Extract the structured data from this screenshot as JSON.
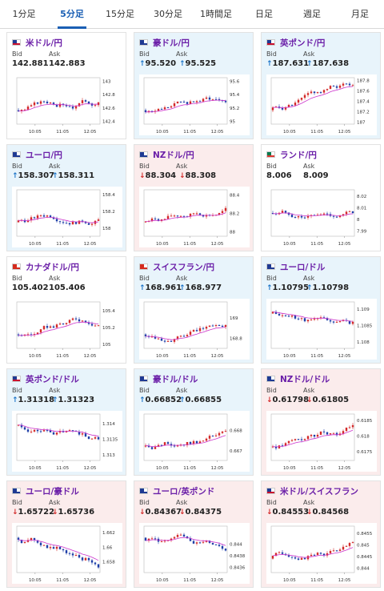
{
  "tabs": [
    {
      "label": "1分足",
      "active": false
    },
    {
      "label": "5分足",
      "active": true
    },
    {
      "label": "15分足",
      "active": false
    },
    {
      "label": "30分足",
      "active": false
    },
    {
      "label": "1時間足",
      "active": false
    },
    {
      "label": "日足",
      "active": false
    },
    {
      "label": "週足",
      "active": false
    },
    {
      "label": "月足",
      "active": false
    }
  ],
  "bid_label": "Bid",
  "ask_label": "Ask",
  "colors": {
    "up_bg": "#e8f4fb",
    "down_bg": "#fbecec",
    "bull": "#d32a2a",
    "bear": "#1f3fa8",
    "ma": "#cc33cc",
    "pair_name": "#6b1fa8"
  },
  "cards": [
    {
      "name": "米ドル/円",
      "flag": "us",
      "dir": "none",
      "bid": "142.881",
      "ask": "142.883",
      "chart_data": {
        "type": "candlestick",
        "x_ticks": [
          "10:05",
          "11:05",
          "12:05"
        ],
        "y_ticks": [
          "143",
          "142.8",
          "142.6",
          "142.4"
        ],
        "ylim": [
          142.35,
          143.05
        ],
        "trend": "up"
      }
    },
    {
      "name": "豪ドル/円",
      "flag": "au",
      "dir": "up",
      "bid": "95.520",
      "ask": "95.525",
      "chart_data": {
        "type": "candlestick",
        "x_ticks": [
          "10:05",
          "11:05",
          "12:05"
        ],
        "y_ticks": [
          "95.6",
          "95.4",
          "95.2",
          "95"
        ],
        "ylim": [
          94.95,
          95.65
        ],
        "trend": "up"
      }
    },
    {
      "name": "英ポンド/円",
      "flag": "gb",
      "dir": "up",
      "bid": "187.631",
      "ask": "187.638",
      "chart_data": {
        "type": "candlestick",
        "x_ticks": [
          "10:05",
          "11:05",
          "12:05"
        ],
        "y_ticks": [
          "187.8",
          "187.6",
          "187.4",
          "187.2",
          "187"
        ],
        "ylim": [
          186.95,
          187.85
        ],
        "trend": "up"
      }
    },
    {
      "name": "ユーロ/円",
      "flag": "eu",
      "dir": "up",
      "bid": "158.307",
      "ask": "158.311",
      "chart_data": {
        "type": "candlestick",
        "x_ticks": [
          "10:05",
          "11:05",
          "12:05"
        ],
        "y_ticks": [
          "158.4",
          "158.2",
          "158"
        ],
        "ylim": [
          157.9,
          158.45
        ],
        "trend": "up"
      }
    },
    {
      "name": "NZドル/円",
      "flag": "nz",
      "dir": "down",
      "bid": "88.304",
      "ask": "88.308",
      "chart_data": {
        "type": "candlestick",
        "x_ticks": [
          "10:05",
          "11:05",
          "12:05"
        ],
        "y_ticks": [
          "88.4",
          "88.2",
          "88"
        ],
        "ylim": [
          87.95,
          88.45
        ],
        "trend": "up"
      }
    },
    {
      "name": "ランド/円",
      "flag": "za",
      "dir": "none",
      "bid": "8.006",
      "ask": "8.009",
      "chart_data": {
        "type": "candlestick",
        "x_ticks": [
          "10:05",
          "11:05",
          "12:05"
        ],
        "y_ticks": [
          "8.02",
          "8.01",
          "8",
          "7.99"
        ],
        "ylim": [
          7.985,
          8.025
        ],
        "trend": "flat"
      }
    },
    {
      "name": "カナダドル/円",
      "flag": "ca",
      "dir": "none",
      "bid": "105.402",
      "ask": "105.406",
      "chart_data": {
        "type": "candlestick",
        "x_ticks": [
          "10:05",
          "11:05",
          "12:05"
        ],
        "y_ticks": [
          "105.4",
          "105.2",
          "105"
        ],
        "ylim": [
          104.95,
          105.5
        ],
        "trend": "up"
      }
    },
    {
      "name": "スイスフラン/円",
      "flag": "ch",
      "dir": "up",
      "bid": "168.961",
      "ask": "168.977",
      "chart_data": {
        "type": "candlestick",
        "x_ticks": [
          "10:05",
          "11:05",
          "12:05"
        ],
        "y_ticks": [
          "169",
          "168.8"
        ],
        "ylim": [
          168.7,
          169.15
        ],
        "trend": "up"
      }
    },
    {
      "name": "ユーロ/ドル",
      "flag": "eu",
      "dir": "up",
      "bid": "1.10795",
      "ask": "1.10798",
      "chart_data": {
        "type": "candlestick",
        "x_ticks": [
          "10:05",
          "11:05",
          "12:05"
        ],
        "y_ticks": [
          "1.109",
          "1.1085",
          "1.108"
        ],
        "ylim": [
          1.1078,
          1.1092
        ],
        "trend": "down"
      }
    },
    {
      "name": "英ポンド/ドル",
      "flag": "gb",
      "dir": "up",
      "bid": "1.31318",
      "ask": "1.31323",
      "chart_data": {
        "type": "candlestick",
        "x_ticks": [
          "10:05",
          "11:05",
          "12:05"
        ],
        "y_ticks": [
          "1.314",
          "1.3135",
          "1.313"
        ],
        "ylim": [
          1.3128,
          1.3143
        ],
        "trend": "down"
      }
    },
    {
      "name": "豪ドル/ドル",
      "flag": "au",
      "dir": "up",
      "bid": "0.66852",
      "ask": "0.66855",
      "chart_data": {
        "type": "candlestick",
        "x_ticks": [
          "10:05",
          "11:05",
          "12:05"
        ],
        "y_ticks": [
          "0.668",
          "0.667"
        ],
        "ylim": [
          0.6665,
          0.6688
        ],
        "trend": "up"
      }
    },
    {
      "name": "NZドル/ドル",
      "flag": "nz",
      "dir": "down",
      "bid": "0.61798",
      "ask": "0.61805",
      "chart_data": {
        "type": "candlestick",
        "x_ticks": [
          "10:05",
          "11:05",
          "12:05"
        ],
        "y_ticks": [
          "0.6185",
          "0.618",
          "0.6175"
        ],
        "ylim": [
          0.6172,
          0.6187
        ],
        "trend": "up"
      }
    },
    {
      "name": "ユーロ/豪ドル",
      "flag": "eu",
      "dir": "down",
      "bid": "1.65722",
      "ask": "1.65736",
      "chart_data": {
        "type": "candlestick",
        "x_ticks": [
          "10:05",
          "11:05",
          "12:05"
        ],
        "y_ticks": [
          "1.662",
          "1.66",
          "1.658"
        ],
        "ylim": [
          1.6565,
          1.6628
        ],
        "trend": "down"
      }
    },
    {
      "name": "ユーロ/英ポンド",
      "flag": "eu",
      "dir": "down",
      "bid": "0.84367",
      "ask": "0.84375",
      "chart_data": {
        "type": "candlestick",
        "x_ticks": [
          "10:05",
          "11:05",
          "12:05"
        ],
        "y_ticks": [
          "0.844",
          "0.8438",
          "0.8436"
        ],
        "ylim": [
          0.8435,
          0.8443
        ],
        "trend": "down"
      }
    },
    {
      "name": "米ドル/スイスフラン",
      "flag": "us",
      "dir": "down",
      "bid": "0.84553",
      "ask": "0.84568",
      "chart_data": {
        "type": "candlestick",
        "x_ticks": [
          "10:05",
          "11:05",
          "12:05"
        ],
        "y_ticks": [
          "0.8455",
          "0.845",
          "0.8445",
          "0.844"
        ],
        "ylim": [
          0.8438,
          0.8458
        ],
        "trend": "up"
      }
    }
  ]
}
